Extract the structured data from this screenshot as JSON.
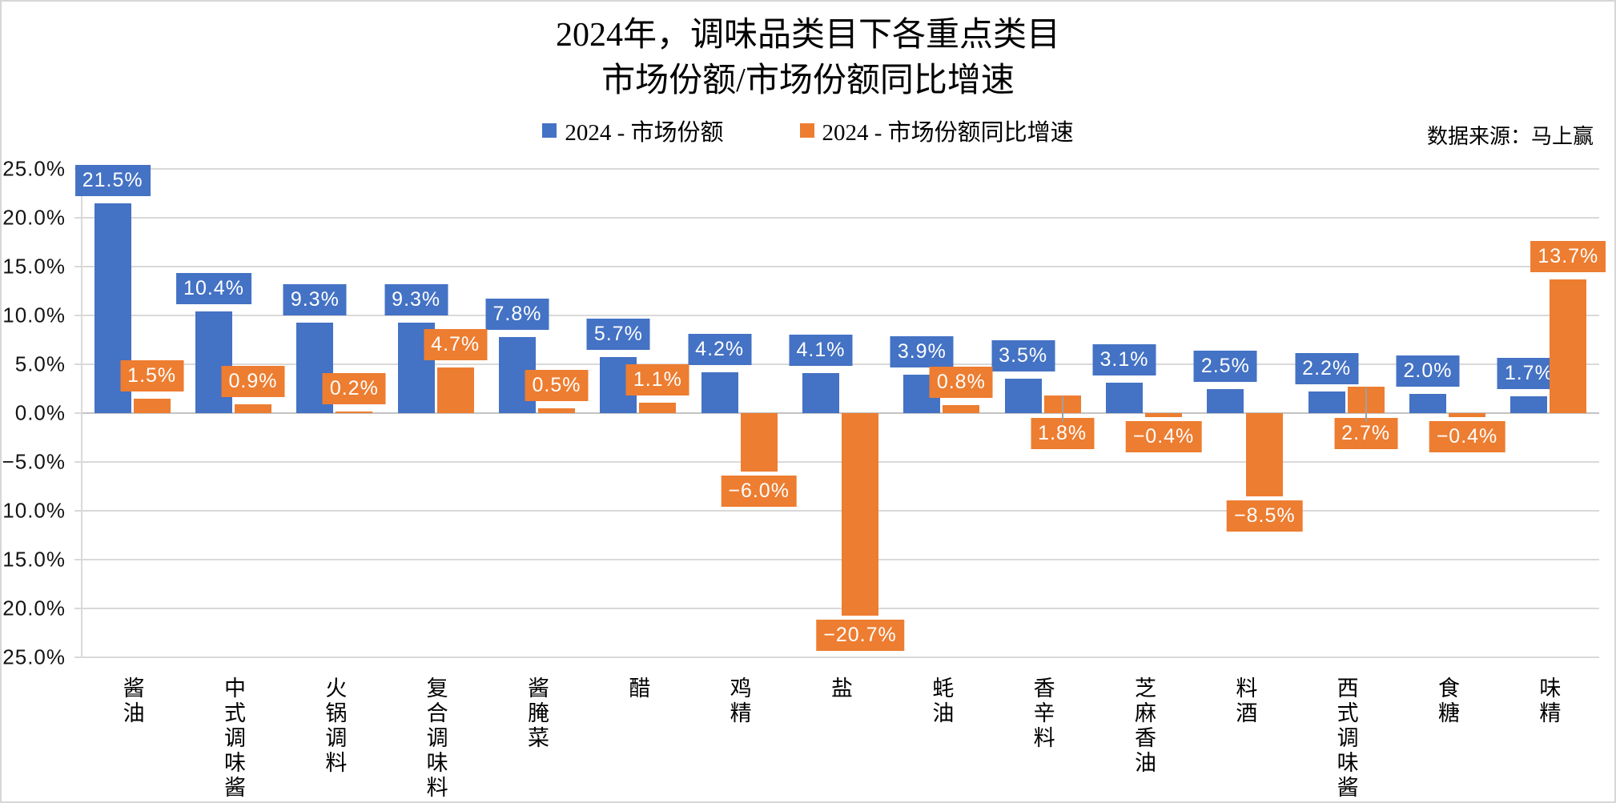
{
  "title": {
    "line1": "2024年，调味品类目下各重点类目",
    "line2": "市场份额/市场份额同比增速"
  },
  "source_note": "数据来源：马上赢",
  "legend": [
    {
      "label": "2024 - 市场份额",
      "color": "#4472C4"
    },
    {
      "label": "2024 - 市场份额同比增速",
      "color": "#ED7D31"
    }
  ],
  "colors": {
    "share_blue": "#4472C4",
    "growth_orange": "#ED7D31",
    "gridline": "#D9D9D9",
    "zero_line": "#C3C3C3",
    "leader_line": "#A0A0A0",
    "label_text": "#FFFFFF"
  },
  "y_axis": {
    "min": -25,
    "max": 25,
    "step": 5,
    "tick_labels": [
      "25.0%",
      "20.0%",
      "15.0%",
      "10.0%",
      "5.0%",
      "0.0%",
      "−5.0%",
      "−10.0%",
      "−15.0%",
      "−20.0%",
      "−25.0%"
    ]
  },
  "chart_data": {
    "type": "bar",
    "title": "2024年，调味品类目下各重点类目 市场份额/市场份额同比增速",
    "categories": [
      "酱油",
      "中式调味酱",
      "火锅调料",
      "复合调味料",
      "酱腌菜",
      "醋",
      "鸡精",
      "盐",
      "蚝油",
      "香辛料",
      "芝麻香油",
      "料酒",
      "西式调味酱",
      "食糖",
      "味精"
    ],
    "series": [
      {
        "name": "2024 - 市场份额",
        "color": "#4472C4",
        "values": [
          21.5,
          10.4,
          9.3,
          9.3,
          7.8,
          5.7,
          4.2,
          4.1,
          3.9,
          3.5,
          3.1,
          2.5,
          2.2,
          2.0,
          1.7
        ],
        "labels": [
          "21.5%",
          "10.4%",
          "9.3%",
          "9.3%",
          "7.8%",
          "5.7%",
          "4.2%",
          "4.1%",
          "3.9%",
          "3.5%",
          "3.1%",
          "2.5%",
          "2.2%",
          "2.0%",
          "1.7%"
        ],
        "label_placement": [
          "above",
          "above",
          "above",
          "above",
          "above",
          "above",
          "above",
          "above",
          "above",
          "above",
          "above",
          "above",
          "above",
          "above",
          "above"
        ]
      },
      {
        "name": "2024 - 市场份额同比增速",
        "color": "#ED7D31",
        "values": [
          1.5,
          0.9,
          0.2,
          4.7,
          0.5,
          1.1,
          -6.0,
          -20.7,
          0.8,
          1.8,
          -0.4,
          -8.5,
          2.7,
          -0.4,
          13.7
        ],
        "labels": [
          "1.5%",
          "0.9%",
          "0.2%",
          "4.7%",
          "0.5%",
          "1.1%",
          "−6.0%",
          "−20.7%",
          "0.8%",
          "1.8%",
          "−0.4%",
          "−8.5%",
          "2.7%",
          "−0.4%",
          "13.7%"
        ],
        "label_placement": [
          "above",
          "above",
          "above",
          "above",
          "above",
          "above",
          "below",
          "below",
          "above",
          "axis-below",
          "below",
          "below",
          "axis-below",
          "below",
          "above"
        ]
      }
    ],
    "ylim": [
      -25,
      25
    ],
    "grid": true,
    "legend_position": "top"
  }
}
